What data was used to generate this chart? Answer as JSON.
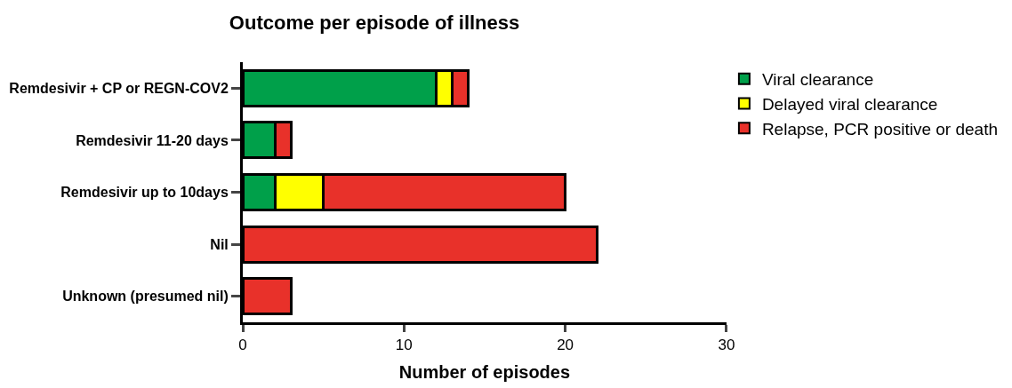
{
  "chart_data": {
    "type": "bar",
    "orientation": "horizontal",
    "stacked": true,
    "title": "Outcome per episode of illness",
    "xlabel": "Number of episodes",
    "categories": [
      "Remdesivir + CP or REGN-COV2",
      "Remdesivir 11-20 days",
      "Remdesivir up to 10days",
      "Nil",
      "Unknown (presumed nil)"
    ],
    "series": [
      {
        "name": "Viral clearance",
        "color": "#00a04a",
        "values": [
          12,
          2,
          2,
          0,
          0
        ]
      },
      {
        "name": "Delayed viral clearance",
        "color": "#ffff00",
        "values": [
          1,
          0,
          3,
          0,
          0
        ]
      },
      {
        "name": "Relapse, PCR positive or death",
        "color": "#e8312a",
        "values": [
          1,
          1,
          15,
          22,
          3
        ]
      }
    ],
    "xlim": [
      0,
      30
    ],
    "xticks": [
      0,
      10,
      20,
      30
    ],
    "legend": "top right"
  }
}
